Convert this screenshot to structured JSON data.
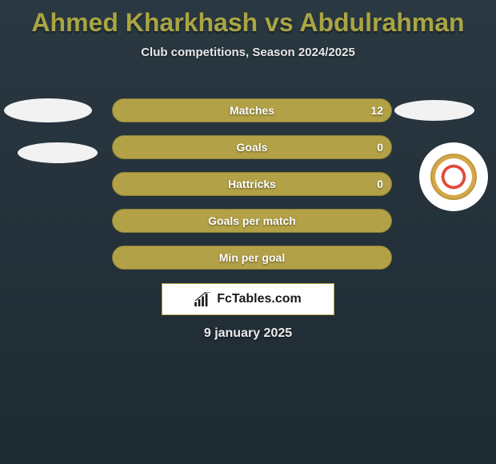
{
  "title": "Ahmed Kharkhash vs Abdulrahman",
  "subtitle": "Club competitions, Season 2024/2025",
  "date": "9 january 2025",
  "brand": {
    "text": "FcTables.com"
  },
  "colors": {
    "accent": "#a9a544",
    "bar_primary": "#b2a147",
    "bar_secondary": "#9d8f3c",
    "bar_outline": "#8e8034",
    "background_top": "#2a3842",
    "background_bottom": "#1e2a32",
    "text_light": "#ffffff"
  },
  "player_left": {
    "name": "Ahmed Kharkhash"
  },
  "player_right": {
    "name": "Abdulrahman"
  },
  "bars": [
    {
      "label": "Matches",
      "left_value": "",
      "right_value": "12",
      "left_pct": 0,
      "right_pct": 100,
      "bg_color": "#b2a147",
      "fill_color": "#b2a147"
    },
    {
      "label": "Goals",
      "left_value": "",
      "right_value": "0",
      "left_pct": 0,
      "right_pct": 100,
      "bg_color": "#b2a147",
      "fill_color": "#b2a147"
    },
    {
      "label": "Hattricks",
      "left_value": "",
      "right_value": "0",
      "left_pct": 0,
      "right_pct": 100,
      "bg_color": "#b2a147",
      "fill_color": "#b2a147"
    },
    {
      "label": "Goals per match",
      "left_value": "",
      "right_value": "",
      "left_pct": 0,
      "right_pct": 100,
      "bg_color": "#b2a147",
      "fill_color": "#b2a147"
    },
    {
      "label": "Min per goal",
      "left_value": "",
      "right_value": "",
      "left_pct": 0,
      "right_pct": 100,
      "bg_color": "#b2a147",
      "fill_color": "#b2a147"
    }
  ]
}
